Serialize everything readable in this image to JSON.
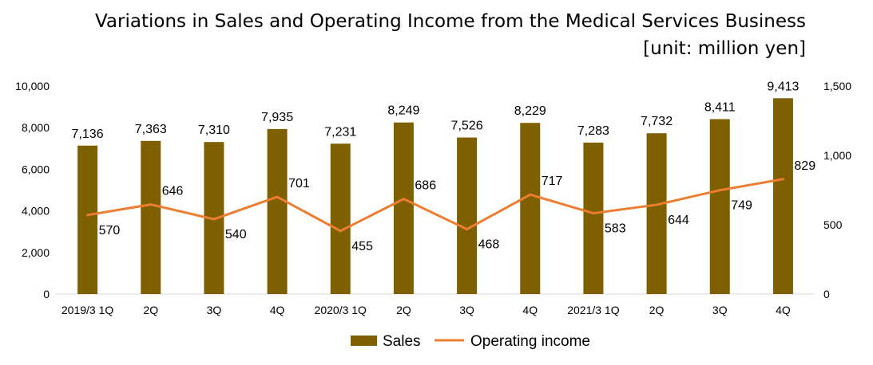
{
  "chart_data": {
    "type": "bar",
    "title": "Variations in Sales and Operating Income from the Medical Services Business",
    "subtitle": "[unit: million yen]",
    "categories": [
      "2019/3 1Q",
      "2Q",
      "3Q",
      "4Q",
      "2020/3 1Q",
      "2Q",
      "3Q",
      "4Q",
      "2021/3 1Q",
      "2Q",
      "3Q",
      "4Q"
    ],
    "series": [
      {
        "name": "Sales",
        "type": "bar",
        "axis": "left",
        "color": "#7f6000",
        "values": [
          7136,
          7363,
          7310,
          7935,
          7231,
          8249,
          7526,
          8229,
          7283,
          7732,
          8411,
          9413
        ],
        "labels": [
          "7,136",
          "7,363",
          "7,310",
          "7,935",
          "7,231",
          "8,249",
          "7,526",
          "8,229",
          "7,283",
          "7,732",
          "8,411",
          "9,413"
        ]
      },
      {
        "name": "Operating income",
        "type": "line",
        "axis": "right",
        "color": "#ed7d31",
        "values": [
          570,
          646,
          540,
          701,
          455,
          686,
          468,
          717,
          583,
          644,
          749,
          829
        ],
        "labels": [
          "570",
          "646",
          "540",
          "701",
          "455",
          "686",
          "468",
          "717",
          "583",
          "644",
          "749",
          "829"
        ]
      }
    ],
    "y_left": {
      "min": 0,
      "max": 10000,
      "ticks": [
        "0",
        "2,000",
        "4,000",
        "6,000",
        "8,000",
        "10,000"
      ]
    },
    "y_right": {
      "min": 0,
      "max": 1500,
      "ticks": [
        "0",
        "500",
        "1,000",
        "1,500"
      ]
    },
    "grid": false,
    "legend": {
      "position": "bottom",
      "items": [
        "Sales",
        "Operating income"
      ]
    }
  }
}
